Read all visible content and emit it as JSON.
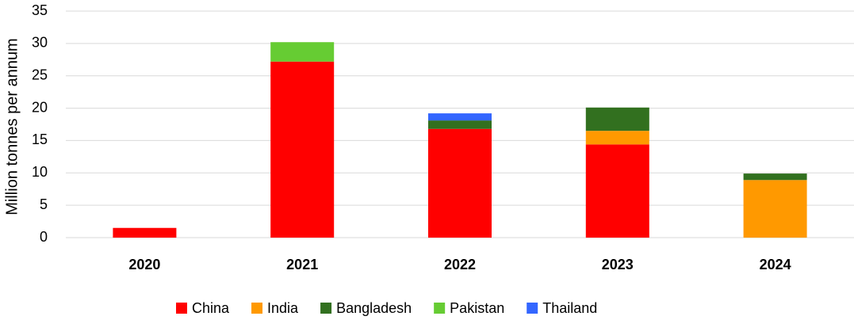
{
  "chart_data": {
    "type": "stacked_bar",
    "y_label": "Million tonnes per annum",
    "categories": [
      "2020",
      "2021",
      "2022",
      "2023",
      "2024"
    ],
    "series": [
      {
        "name": "China",
        "color": "#ff0000",
        "values": [
          1.5,
          27.2,
          16.8,
          14.4,
          null
        ]
      },
      {
        "name": "India",
        "color": "#ff9900",
        "values": [
          null,
          null,
          null,
          2.1,
          8.9
        ]
      },
      {
        "name": "Bangladesh",
        "color": "#32701f",
        "values": [
          null,
          null,
          1.3,
          3.6,
          1.0
        ]
      },
      {
        "name": "Pakistan",
        "color": "#66cc33",
        "values": [
          null,
          3.0,
          null,
          null,
          null
        ]
      },
      {
        "name": "Thailand",
        "color": "#3366ff",
        "values": [
          null,
          null,
          1.1,
          null,
          null
        ]
      }
    ],
    "ylim": [
      0,
      35
    ],
    "yticks": [
      0,
      5,
      10,
      15,
      20,
      25,
      30,
      35
    ],
    "grid": true,
    "legend": "bottom"
  }
}
